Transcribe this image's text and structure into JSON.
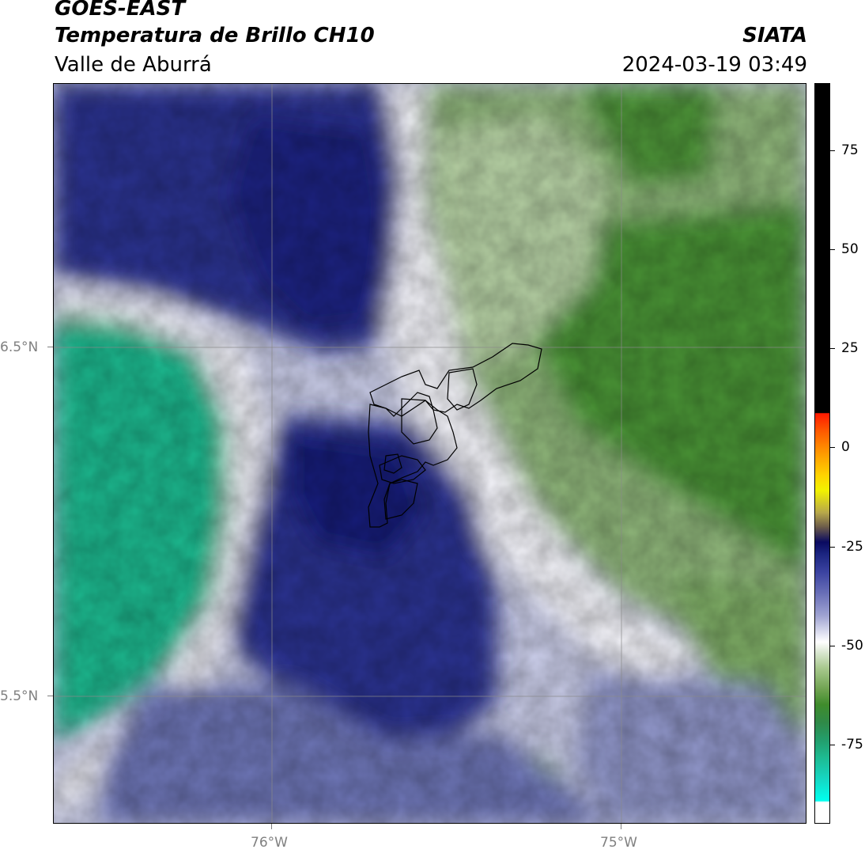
{
  "header": {
    "satellite": "GOES-EAST",
    "product": "Temperatura de Brillo CH10",
    "region": "Valle de Aburrá",
    "agency": "SIATA",
    "datetime": "2024-03-19 03:49"
  },
  "axes": {
    "lat_labels": [
      "6.5°N",
      "5.5°N"
    ],
    "lon_labels": [
      "76°W",
      "75°W"
    ]
  },
  "colorbar": {
    "labels": [
      "75",
      "50",
      "25",
      "0",
      "-25",
      "-50",
      "-75"
    ],
    "values": [
      75,
      50,
      25,
      0,
      -25,
      -50,
      -75
    ],
    "range": [
      -95,
      92
    ]
  },
  "colors": {
    "deep_blue": "#141c7a",
    "mid_blue": "#3c46a0",
    "lavender": "#bfc3e3",
    "white": "#ffffff",
    "light_green": "#b9d3a6",
    "mid_green": "#6f9f55",
    "dark_green": "#3b8a25",
    "teal": "#1eb98f"
  }
}
